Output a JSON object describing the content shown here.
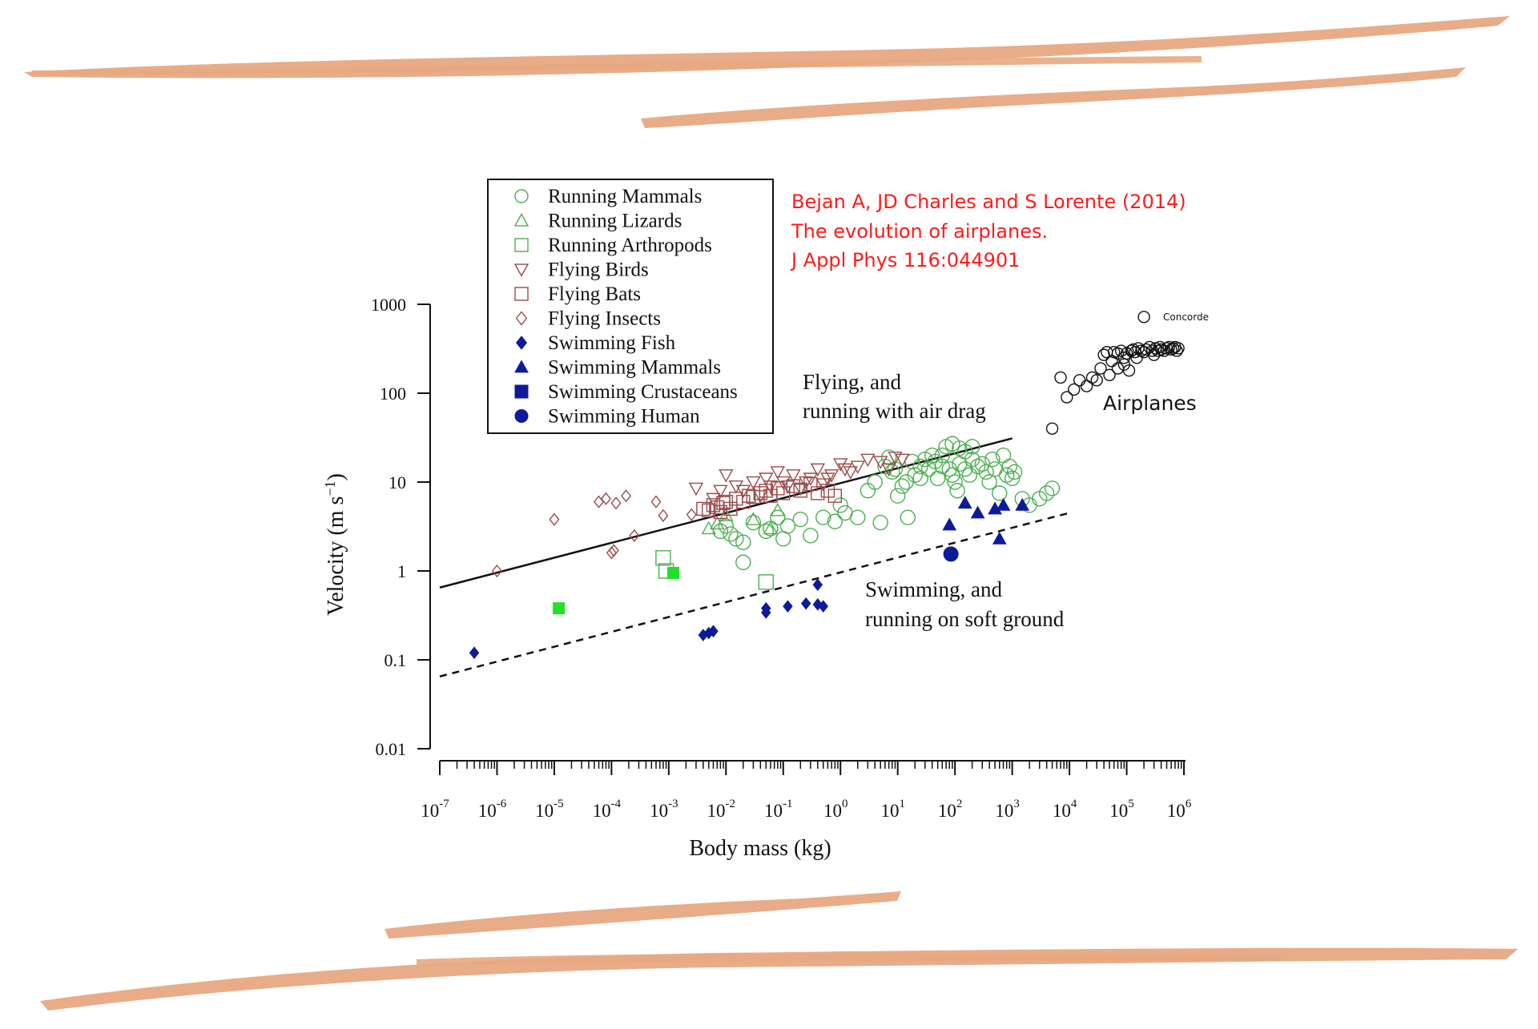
{
  "citation": {
    "line1": "Bejan A, JD Charles and S Lorente (2014)",
    "line2": "The evolution of airplanes.",
    "line3": "J Appl Phys 116:044901",
    "color": "#ff1a1a"
  },
  "colors": {
    "stroke_accent": "#e8a882",
    "green": "#4caf50",
    "bright_green": "#22e02a",
    "brown": "#9b4a4a",
    "navy": "#0d1a9a",
    "black": "#111111"
  },
  "chart_data": {
    "type": "scatter",
    "xscale": "log",
    "yscale": "log",
    "xlim": [
      1e-07,
      1000000.0
    ],
    "ylim": [
      0.01,
      1000
    ],
    "xlabel": "Body mass (kg)",
    "ylabel_main": "Velocity (m s",
    "ylabel_sup": "−1",
    "ylabel_close": ")",
    "xticks": [
      {
        "v": 1e-07,
        "base": "10",
        "exp": "-7"
      },
      {
        "v": 1e-06,
        "base": "10",
        "exp": "-6"
      },
      {
        "v": 1e-05,
        "base": "10",
        "exp": "-5"
      },
      {
        "v": 0.0001,
        "base": "10",
        "exp": "-4"
      },
      {
        "v": 0.001,
        "base": "10",
        "exp": "-3"
      },
      {
        "v": 0.01,
        "base": "10",
        "exp": "-2"
      },
      {
        "v": 0.1,
        "base": "10",
        "exp": "-1"
      },
      {
        "v": 1.0,
        "base": "10",
        "exp": "0"
      },
      {
        "v": 10.0,
        "base": "10",
        "exp": "1"
      },
      {
        "v": 100.0,
        "base": "10",
        "exp": "2"
      },
      {
        "v": 1000.0,
        "base": "10",
        "exp": "3"
      },
      {
        "v": 10000.0,
        "base": "10",
        "exp": "4"
      },
      {
        "v": 100000.0,
        "base": "10",
        "exp": "5"
      },
      {
        "v": 1000000.0,
        "base": "10",
        "exp": "6"
      }
    ],
    "yticks": [
      {
        "v": 1000,
        "label": "1000"
      },
      {
        "v": 100,
        "label": "100"
      },
      {
        "v": 10,
        "label": "10"
      },
      {
        "v": 1,
        "label": "1"
      },
      {
        "v": 0.1,
        "label": "0.1"
      },
      {
        "v": 0.01,
        "label": "0.01"
      }
    ],
    "legend_position": "top-left",
    "lines": [
      {
        "label_line1": "Flying, and",
        "label_line2": "running with air drag",
        "dash": false,
        "x": [
          1e-07,
          1000.0
        ],
        "y": [
          0.65,
          31
        ]
      },
      {
        "label_line1": "Swimming, and",
        "label_line2": "running on soft ground",
        "dash": true,
        "x": [
          1e-07,
          10000.0
        ],
        "y": [
          0.065,
          4.5
        ]
      }
    ],
    "annotations": [
      {
        "text": "Airplanes",
        "x": 110000.0,
        "y": 105
      },
      {
        "text": "Concorde",
        "x": 400000.0,
        "y": 730
      }
    ],
    "series": [
      {
        "name": "Running Mammals",
        "marker": "circle",
        "fill": false,
        "color": "#4caf50",
        "points": [
          [
            0.008,
            2.8
          ],
          [
            0.01,
            3.2
          ],
          [
            0.012,
            2.6
          ],
          [
            0.015,
            2.3
          ],
          [
            0.02,
            2.1
          ],
          [
            0.02,
            1.25
          ],
          [
            0.03,
            3.5
          ],
          [
            0.05,
            2.8
          ],
          [
            0.06,
            3.0
          ],
          [
            0.08,
            4.0
          ],
          [
            0.1,
            2.3
          ],
          [
            0.12,
            3.2
          ],
          [
            0.2,
            3.8
          ],
          [
            0.3,
            2.5
          ],
          [
            0.5,
            4.0
          ],
          [
            0.8,
            3.6
          ],
          [
            1,
            5.5
          ],
          [
            1.2,
            4.5
          ],
          [
            2,
            4.0
          ],
          [
            3,
            8.0
          ],
          [
            4,
            10
          ],
          [
            5,
            3.5
          ],
          [
            6,
            15
          ],
          [
            8,
            13
          ],
          [
            10,
            7
          ],
          [
            12,
            9
          ],
          [
            15,
            4
          ],
          [
            20,
            12
          ],
          [
            25,
            15
          ],
          [
            30,
            18
          ],
          [
            40,
            20
          ],
          [
            50,
            11
          ],
          [
            60,
            15
          ],
          [
            70,
            25
          ],
          [
            80,
            14
          ],
          [
            90,
            12
          ],
          [
            100,
            10
          ],
          [
            110,
            8
          ],
          [
            120,
            16
          ],
          [
            150,
            14
          ],
          [
            180,
            12
          ],
          [
            200,
            18
          ],
          [
            250,
            15
          ],
          [
            300,
            16
          ],
          [
            350,
            13
          ],
          [
            400,
            10
          ],
          [
            450,
            18
          ],
          [
            500,
            14
          ],
          [
            600,
            7.5
          ],
          [
            700,
            20
          ],
          [
            800,
            12
          ],
          [
            900,
            15
          ],
          [
            1000,
            11
          ],
          [
            1100,
            13
          ],
          [
            1500,
            6.5
          ],
          [
            2000,
            5.5
          ],
          [
            3000,
            6.5
          ],
          [
            4000,
            7.5
          ],
          [
            5000,
            8.5
          ],
          [
            200,
            25
          ],
          [
            150,
            22
          ],
          [
            120,
            24
          ],
          [
            90,
            27
          ],
          [
            60,
            20
          ],
          [
            45,
            17
          ],
          [
            35,
            14
          ],
          [
            25,
            11
          ],
          [
            18,
            17
          ],
          [
            14,
            10
          ],
          [
            9,
            14
          ],
          [
            7,
            19
          ]
        ]
      },
      {
        "name": "Running Lizards",
        "marker": "triangle-up",
        "fill": false,
        "color": "#4caf50",
        "points": [
          [
            0.005,
            3.0
          ],
          [
            0.007,
            3.4
          ],
          [
            0.01,
            4.2
          ],
          [
            0.03,
            3.8
          ],
          [
            0.06,
            3.0
          ],
          [
            0.08,
            4.8
          ]
        ]
      },
      {
        "name": "Running Arthropods",
        "marker": "square",
        "fill": false,
        "color": "#4caf50",
        "points": [
          [
            0.0008,
            1.4
          ],
          [
            0.0009,
            1.0
          ],
          [
            0.05,
            0.75
          ]
        ]
      },
      {
        "name": "Flying Birds",
        "marker": "triangle-down",
        "fill": false,
        "color": "#9b4a4a",
        "points": [
          [
            0.003,
            8.5
          ],
          [
            0.006,
            6.5
          ],
          [
            0.008,
            8.0
          ],
          [
            0.01,
            12
          ],
          [
            0.015,
            9.0
          ],
          [
            0.02,
            8.0
          ],
          [
            0.03,
            10
          ],
          [
            0.04,
            7.0
          ],
          [
            0.05,
            11
          ],
          [
            0.06,
            9.0
          ],
          [
            0.08,
            13
          ],
          [
            0.1,
            10
          ],
          [
            0.15,
            12
          ],
          [
            0.2,
            8.5
          ],
          [
            0.3,
            11
          ],
          [
            0.4,
            14
          ],
          [
            0.5,
            9.5
          ],
          [
            0.7,
            12
          ],
          [
            1,
            16
          ],
          [
            1.5,
            13
          ],
          [
            2,
            15
          ],
          [
            3,
            18
          ],
          [
            5,
            17
          ],
          [
            7,
            14
          ],
          [
            9,
            19
          ],
          [
            12,
            18
          ],
          [
            0.12,
            9.0
          ],
          [
            0.25,
            10
          ],
          [
            0.6,
            11
          ],
          [
            1.2,
            14
          ]
        ]
      },
      {
        "name": "Flying Bats",
        "marker": "square",
        "fill": false,
        "color": "#9b4a4a",
        "points": [
          [
            0.004,
            5.0
          ],
          [
            0.005,
            4.8
          ],
          [
            0.006,
            5.5
          ],
          [
            0.007,
            5.2
          ],
          [
            0.008,
            4.6
          ],
          [
            0.009,
            5.8
          ],
          [
            0.01,
            6.0
          ],
          [
            0.012,
            5.0
          ],
          [
            0.015,
            6.5
          ],
          [
            0.02,
            6.0
          ],
          [
            0.025,
            7.0
          ],
          [
            0.03,
            6.8
          ],
          [
            0.04,
            7.5
          ],
          [
            0.05,
            8.0
          ],
          [
            0.06,
            7.0
          ],
          [
            0.08,
            8.5
          ],
          [
            0.1,
            7.5
          ],
          [
            0.15,
            9.0
          ],
          [
            0.2,
            8.0
          ],
          [
            0.3,
            9.5
          ],
          [
            0.4,
            7.5
          ],
          [
            0.6,
            8.0
          ],
          [
            0.8,
            7.0
          ]
        ]
      },
      {
        "name": "Flying Insects",
        "marker": "diamond",
        "fill": false,
        "color": "#9b4a4a",
        "points": [
          [
            1e-06,
            1.0
          ],
          [
            1e-05,
            3.8
          ],
          [
            6e-05,
            6.0
          ],
          [
            8e-05,
            6.5
          ],
          [
            0.00012,
            5.8
          ],
          [
            0.00018,
            7.0
          ],
          [
            0.00025,
            2.5
          ],
          [
            0.0001,
            1.6
          ],
          [
            0.00011,
            1.7
          ],
          [
            0.0006,
            6.0
          ],
          [
            0.0008,
            4.2
          ],
          [
            0.0025,
            4.3
          ]
        ]
      },
      {
        "name": "Swimming Fish",
        "marker": "diamond",
        "fill": true,
        "color": "#0d1a9a",
        "points": [
          [
            4e-07,
            0.12
          ],
          [
            0.004,
            0.19
          ],
          [
            0.005,
            0.2
          ],
          [
            0.006,
            0.21
          ],
          [
            0.05,
            0.34
          ],
          [
            0.05,
            0.38
          ],
          [
            0.12,
            0.4
          ],
          [
            0.25,
            0.43
          ],
          [
            0.4,
            0.42
          ],
          [
            0.5,
            0.4
          ],
          [
            0.4,
            0.7
          ]
        ]
      },
      {
        "name": "Swimming Mammals",
        "marker": "triangle-up",
        "fill": true,
        "color": "#0d1a9a",
        "points": [
          [
            80,
            3.3
          ],
          [
            150,
            5.8
          ],
          [
            250,
            4.5
          ],
          [
            500,
            5.0
          ],
          [
            700,
            5.5
          ],
          [
            1500,
            5.5
          ],
          [
            600,
            2.3
          ]
        ]
      },
      {
        "name": "Swimming Crustaceans",
        "marker": "square",
        "fill": true,
        "color": "#22e02a",
        "points": [
          [
            1.2e-05,
            0.38
          ],
          [
            0.0012,
            0.95
          ]
        ]
      },
      {
        "name": "Swimming Human",
        "marker": "circle",
        "fill": true,
        "color": "#0d1a9a",
        "points": [
          [
            85,
            1.55
          ]
        ]
      },
      {
        "name": "Airplanes",
        "marker": "circle",
        "fill": false,
        "color": "#111111",
        "in_legend": false,
        "points": [
          [
            5000,
            40
          ],
          [
            7000,
            150
          ],
          [
            9000,
            90
          ],
          [
            12000,
            110
          ],
          [
            15000,
            140
          ],
          [
            20000,
            120
          ],
          [
            25000,
            150
          ],
          [
            30000,
            140
          ],
          [
            35000,
            190
          ],
          [
            40000,
            270
          ],
          [
            45000,
            290
          ],
          [
            50000,
            160
          ],
          [
            55000,
            230
          ],
          [
            60000,
            290
          ],
          [
            70000,
            280
          ],
          [
            80000,
            300
          ],
          [
            90000,
            250
          ],
          [
            100000,
            280
          ],
          [
            110000,
            180
          ],
          [
            120000,
            300
          ],
          [
            130000,
            310
          ],
          [
            140000,
            290
          ],
          [
            150000,
            250
          ],
          [
            160000,
            320
          ],
          [
            180000,
            300
          ],
          [
            200000,
            290
          ],
          [
            220000,
            310
          ],
          [
            250000,
            330
          ],
          [
            280000,
            300
          ],
          [
            300000,
            270
          ],
          [
            320000,
            320
          ],
          [
            350000,
            300
          ],
          [
            380000,
            330
          ],
          [
            400000,
            310
          ],
          [
            450000,
            300
          ],
          [
            500000,
            320
          ],
          [
            550000,
            330
          ],
          [
            600000,
            310
          ],
          [
            650000,
            320
          ],
          [
            700000,
            330
          ],
          [
            750000,
            300
          ],
          [
            800000,
            320
          ],
          [
            90000,
            210
          ],
          [
            70000,
            190
          ]
        ]
      },
      {
        "name": "Concorde",
        "marker": "circle",
        "fill": false,
        "color": "#111111",
        "in_legend": false,
        "points": [
          [
            200000,
            720
          ]
        ]
      }
    ]
  }
}
